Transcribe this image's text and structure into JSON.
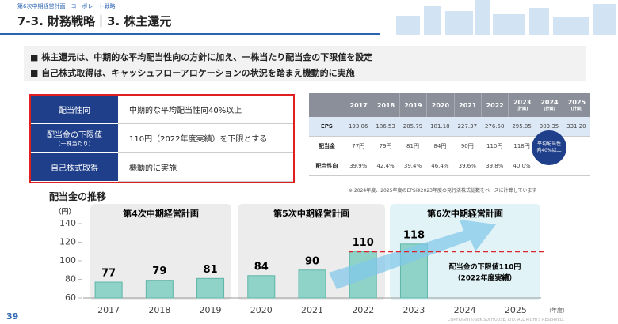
{
  "header": {
    "breadcrumb": [
      "第6次中期経営計画",
      "コーポレート戦略"
    ],
    "title": "7-3. 財務戦略｜3. 株主還元"
  },
  "bullets": [
    "株主還元は、中期的な平均配当性向の方針に加え、一株当たり配当金の下限値を設定",
    "自己株式取得は、キャッシュフローアロケーションの状況を踏まえ機動的に実施"
  ],
  "policy_table": {
    "rows": [
      {
        "label": "配当性向",
        "text": "中期的な平均配当性向40%以上"
      },
      {
        "label": "配当金の下限値",
        "sublabel": "（一株当たり）",
        "text": "110円（2022年度実績）を下限とする"
      },
      {
        "label": "自己株式取得",
        "text": "機動的に実施"
      }
    ]
  },
  "fin_table": {
    "columns": [
      {
        "year": "2017"
      },
      {
        "year": "2018"
      },
      {
        "year": "2019"
      },
      {
        "year": "2020"
      },
      {
        "year": "2021"
      },
      {
        "year": "2022"
      },
      {
        "year": "2023",
        "note": "(計画)"
      },
      {
        "year": "2024",
        "note": "(計画)"
      },
      {
        "year": "2025",
        "note": "(計画)"
      }
    ],
    "rows": [
      {
        "label": "EPS",
        "cells": [
          "193.06",
          "186.53",
          "205.79",
          "181.18",
          "227.37",
          "276.58",
          "295.05",
          "303.35",
          "331.20"
        ]
      },
      {
        "label": "配当金",
        "cells": [
          "77円",
          "79円",
          "81円",
          "84円",
          "90円",
          "110円",
          "118円"
        ]
      },
      {
        "label": "配当性向",
        "cells": [
          "39.9%",
          "42.4%",
          "39.4%",
          "46.4%",
          "39.6%",
          "39.8%",
          "40.0%"
        ]
      }
    ],
    "badge": "平均配当性向40%以上",
    "note": "※ 2024年度、2025年度のEPSは2023年度の発行済株式総数をベースに計算しています"
  },
  "chart_data": {
    "type": "bar",
    "title": "配当金の推移",
    "y_unit": "（円）",
    "x_unit": "（年度）",
    "categories": [
      "2017",
      "2018",
      "2019",
      "2020",
      "2021",
      "2022",
      "2023",
      "2024",
      "2025"
    ],
    "values": [
      77,
      79,
      81,
      84,
      90,
      110,
      118,
      null,
      null
    ],
    "color": "#8fd3c8",
    "ylim": [
      60,
      140
    ],
    "yticks": [
      60,
      80,
      100,
      120,
      140
    ],
    "plans": [
      "第4次中期経営計画",
      "第5次中期経営計画",
      "第6次中期経営計画"
    ],
    "floor": {
      "value": 110,
      "label": "配当金の下限値110円",
      "sublabel": "（2022年度実績）"
    }
  },
  "footer": {
    "page": "39",
    "copyright": "COPYRIGHT©SEKISUI HOUSE, LTD. ALL RIGHTS RESERVED."
  }
}
